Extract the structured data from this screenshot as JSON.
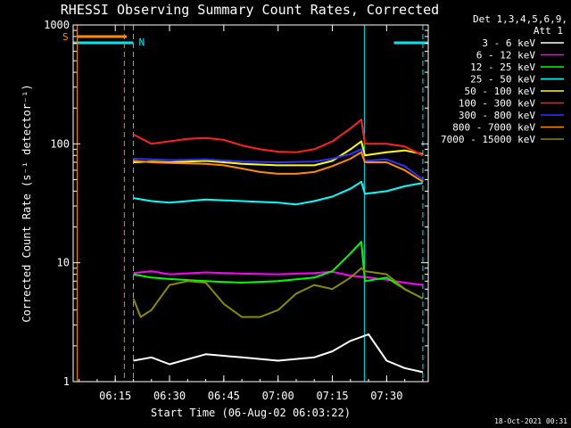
{
  "chart_data": {
    "type": "line",
    "title": "RHESSI Observing Summary Count Rates, Corrected",
    "xlabel": "Start Time (06-Aug-02 06:03:22)",
    "ylabel": "Corrected Count Rate (s⁻¹ detector⁻¹)",
    "yscale": "log",
    "ylim": [
      1,
      1000
    ],
    "xlim": [
      "06:03:22",
      "07:41:30"
    ],
    "xticks": [
      "06:15",
      "06:30",
      "06:45",
      "07:00",
      "07:15",
      "07:30"
    ],
    "yticks": [
      "1",
      "10",
      "100",
      "1000"
    ],
    "legend_header": [
      "Det 1,3,4,5,6,9,",
      "Att 1"
    ],
    "legend_placement": "right",
    "timestamp": "18-Oct-2021 00:31",
    "flags": {
      "s_label": "S",
      "n_label": "N",
      "s_color": "#ff8c00",
      "n_color": "#00e5ee",
      "s_bar": [
        "06:04:30",
        "06:18:10"
      ],
      "n_bar": [
        "06:03:22",
        "06:20:00"
      ],
      "n_bar2": [
        "07:32:00",
        "07:41:30"
      ],
      "s_lines": [
        "06:04:30",
        "06:17:30"
      ],
      "n_lines": [
        "06:20:00",
        "07:23:50",
        "07:40:00"
      ]
    },
    "series": [
      {
        "name": "3 - 6 keV",
        "color": "#ffffff",
        "x": [
          "06:20",
          "06:25",
          "06:30",
          "06:40",
          "06:50",
          "07:00",
          "07:10",
          "07:15",
          "07:20",
          "07:25",
          "07:30",
          "07:35",
          "07:40"
        ],
        "y": [
          1.5,
          1.6,
          1.4,
          1.7,
          1.6,
          1.5,
          1.6,
          1.8,
          2.2,
          2.5,
          1.5,
          1.3,
          1.2
        ]
      },
      {
        "name": "6 - 12 keV",
        "color": "#ff00ff",
        "x": [
          "06:20",
          "06:25",
          "06:30",
          "06:40",
          "06:50",
          "07:00",
          "07:10",
          "07:15",
          "07:20",
          "07:25",
          "07:30",
          "07:35",
          "07:40"
        ],
        "y": [
          8.2,
          8.5,
          8.0,
          8.3,
          8.1,
          8.0,
          8.2,
          8.4,
          7.8,
          7.5,
          7.2,
          6.8,
          6.5
        ]
      },
      {
        "name": "12 - 25 keV",
        "color": "#00ff00",
        "x": [
          "06:20",
          "06:25",
          "06:30",
          "06:40",
          "06:50",
          "07:00",
          "07:10",
          "07:15",
          "07:20",
          "07:23",
          "07:24",
          "07:30",
          "07:35",
          "07:40"
        ],
        "y": [
          8.0,
          7.5,
          7.3,
          7.0,
          6.8,
          7.0,
          7.5,
          8.5,
          12.0,
          15.0,
          7.0,
          7.5,
          6.0,
          5.0
        ]
      },
      {
        "name": "25 - 50 keV",
        "color": "#00ffff",
        "x": [
          "06:20",
          "06:25",
          "06:30",
          "06:40",
          "06:50",
          "07:00",
          "07:05",
          "07:10",
          "07:15",
          "07:20",
          "07:23",
          "07:24",
          "07:30",
          "07:35",
          "07:40"
        ],
        "y": [
          35,
          33,
          32,
          34,
          33,
          32,
          31,
          33,
          36,
          42,
          48,
          38,
          40,
          44,
          47
        ]
      },
      {
        "name": "50 - 100 keV",
        "color": "#ffff00",
        "x": [
          "06:20",
          "06:25",
          "06:30",
          "06:40",
          "06:50",
          "07:00",
          "07:10",
          "07:15",
          "07:20",
          "07:23",
          "07:24",
          "07:30",
          "07:35",
          "07:40"
        ],
        "y": [
          70,
          71,
          70,
          72,
          68,
          66,
          66,
          72,
          90,
          105,
          80,
          85,
          88,
          82
        ]
      },
      {
        "name": "100 - 300 keV",
        "color": "#ff2020",
        "x": [
          "06:20",
          "06:25",
          "06:30",
          "06:35",
          "06:40",
          "06:45",
          "06:50",
          "06:55",
          "07:00",
          "07:05",
          "07:10",
          "07:15",
          "07:20",
          "07:23",
          "07:24",
          "07:30",
          "07:35",
          "07:40"
        ],
        "y": [
          120,
          100,
          105,
          110,
          112,
          108,
          97,
          90,
          86,
          85,
          90,
          105,
          135,
          160,
          100,
          100,
          95,
          80
        ]
      },
      {
        "name": "300 - 800 keV",
        "color": "#3030ff",
        "x": [
          "06:20",
          "06:25",
          "06:30",
          "06:40",
          "06:50",
          "07:00",
          "07:10",
          "07:15",
          "07:20",
          "07:23",
          "07:24",
          "07:30",
          "07:35",
          "07:40"
        ],
        "y": [
          75,
          74,
          73,
          74,
          71,
          70,
          71,
          75,
          82,
          90,
          72,
          74,
          65,
          50
        ]
      },
      {
        "name": "800 - 7000 keV",
        "color": "#ff8c00",
        "x": [
          "06:20",
          "06:25",
          "06:30",
          "06:40",
          "06:45",
          "06:50",
          "06:55",
          "07:00",
          "07:05",
          "07:10",
          "07:15",
          "07:20",
          "07:23",
          "07:24",
          "07:30",
          "07:35",
          "07:40"
        ],
        "y": [
          72,
          70,
          69,
          68,
          66,
          62,
          58,
          56,
          56,
          58,
          65,
          75,
          85,
          70,
          70,
          60,
          48
        ]
      },
      {
        "name": "7000 - 15000 keV",
        "color": "#8b8b00",
        "x": [
          "06:20",
          "06:22",
          "06:25",
          "06:30",
          "06:35",
          "06:40",
          "06:45",
          "06:50",
          "06:55",
          "07:00",
          "07:05",
          "07:10",
          "07:15",
          "07:20",
          "07:23",
          "07:24",
          "07:30",
          "07:35",
          "07:40"
        ],
        "y": [
          5.0,
          3.5,
          4.0,
          6.5,
          7.0,
          6.8,
          4.5,
          3.5,
          3.5,
          4.0,
          5.5,
          6.5,
          6.0,
          7.5,
          9.0,
          8.5,
          8.0,
          6.0,
          5.0
        ]
      }
    ]
  }
}
